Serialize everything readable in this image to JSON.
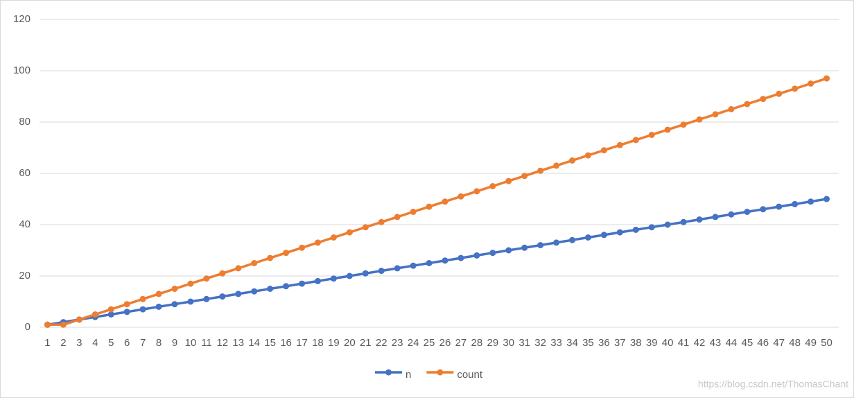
{
  "chart_data": {
    "type": "line",
    "categories": [
      1,
      2,
      3,
      4,
      5,
      6,
      7,
      8,
      9,
      10,
      11,
      12,
      13,
      14,
      15,
      16,
      17,
      18,
      19,
      20,
      21,
      22,
      23,
      24,
      25,
      26,
      27,
      28,
      29,
      30,
      31,
      32,
      33,
      34,
      35,
      36,
      37,
      38,
      39,
      40,
      41,
      42,
      43,
      44,
      45,
      46,
      47,
      48,
      49,
      50
    ],
    "series": [
      {
        "name": "n",
        "color": "#4472c4",
        "values": [
          1,
          2,
          3,
          4,
          5,
          6,
          7,
          8,
          9,
          10,
          11,
          12,
          13,
          14,
          15,
          16,
          17,
          18,
          19,
          20,
          21,
          22,
          23,
          24,
          25,
          26,
          27,
          28,
          29,
          30,
          31,
          32,
          33,
          34,
          35,
          36,
          37,
          38,
          39,
          40,
          41,
          42,
          43,
          44,
          45,
          46,
          47,
          48,
          49,
          50
        ]
      },
      {
        "name": "count",
        "color": "#ed7d31",
        "values": [
          1,
          1,
          3,
          5,
          7,
          9,
          11,
          13,
          15,
          17,
          19,
          21,
          23,
          25,
          27,
          29,
          31,
          33,
          35,
          37,
          39,
          41,
          43,
          45,
          47,
          49,
          51,
          53,
          55,
          57,
          59,
          61,
          63,
          65,
          67,
          69,
          71,
          73,
          75,
          77,
          79,
          81,
          83,
          85,
          87,
          89,
          91,
          93,
          95,
          97
        ]
      }
    ],
    "ylim": [
      0,
      120
    ],
    "yticks": [
      0,
      20,
      40,
      60,
      80,
      100,
      120
    ],
    "grid": true,
    "legend": "bottom",
    "watermark": "https://blog.csdn.net/ThomasChant"
  }
}
